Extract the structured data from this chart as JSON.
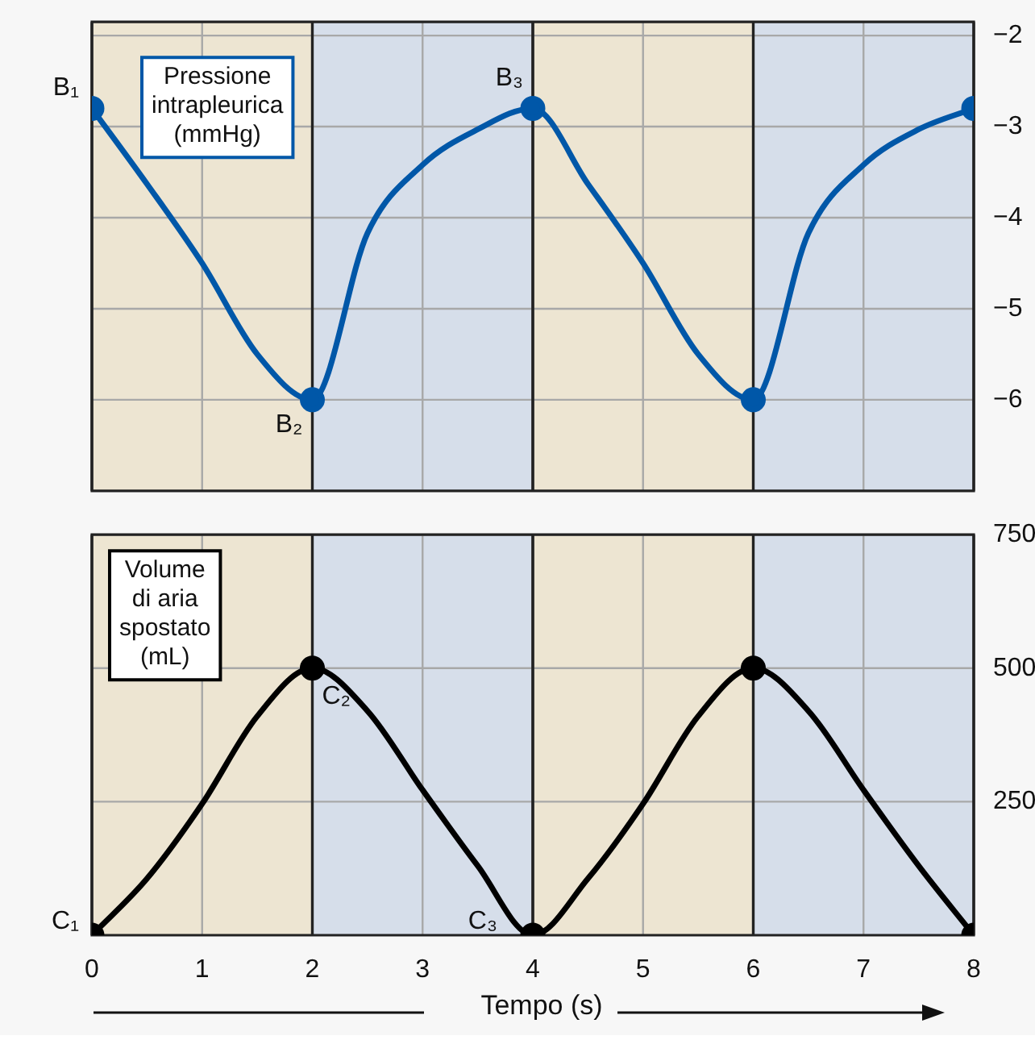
{
  "chart_data": [
    {
      "type": "line",
      "ylabel": "Pressione intrapleurica (mmHg)",
      "xlim": [
        0,
        8
      ],
      "xticks": [
        0,
        1,
        2,
        3,
        4,
        5,
        6,
        7,
        8
      ],
      "ylim": [
        -7,
        -1.85
      ],
      "yticks": [
        {
          "value": -2,
          "label": "−2"
        },
        {
          "value": -3,
          "label": "−3"
        },
        {
          "value": -4,
          "label": "−4"
        },
        {
          "value": -5,
          "label": "−5"
        },
        {
          "value": -6,
          "label": "−6"
        }
      ],
      "tick_labels": "y",
      "grid": true,
      "series": [
        {
          "color": "#0057a8",
          "marker": "none",
          "x": [
            0,
            0.5,
            1,
            1.5,
            2,
            2.5,
            3,
            3.5,
            4,
            4.5,
            5,
            5.5,
            6,
            6.5,
            7,
            7.5,
            8
          ],
          "values": [
            -2.8,
            -3.63,
            -4.5,
            -5.5,
            -6,
            -4.17,
            -3.42,
            -3.03,
            -2.8,
            -3.63,
            -4.5,
            -5.5,
            -6,
            -4.17,
            -3.42,
            -3.03,
            -2.8
          ]
        },
        {
          "type": "scatter",
          "color": "#0057a8",
          "marker": "circle",
          "x": [
            0,
            2,
            4,
            6,
            8
          ],
          "values": [
            -2.8,
            -6,
            -2.8,
            -6,
            -2.8
          ]
        }
      ],
      "bands": [
        {
          "axis": "x",
          "from": 0,
          "to": 2,
          "color": "#ede5d2"
        },
        {
          "axis": "x",
          "from": 2,
          "to": 4,
          "color": "#d6deea"
        },
        {
          "axis": "x",
          "from": 4,
          "to": 6,
          "color": "#ede5d2"
        },
        {
          "axis": "x",
          "from": 6,
          "to": 8,
          "color": "#d6deea"
        }
      ],
      "annotations": [
        {
          "text": "B₁",
          "x": 0,
          "y": -2.8
        },
        {
          "text": "B₂",
          "x": 2,
          "y": -6
        },
        {
          "text": "B₃",
          "x": 4,
          "y": -2.8
        }
      ]
    },
    {
      "type": "line",
      "ylabel": "Volume di aria spostato (mL)",
      "xlabel": "Tempo (s)",
      "xlim": [
        0,
        8
      ],
      "xticks": [
        0,
        1,
        2,
        3,
        4,
        5,
        6,
        7,
        8
      ],
      "ylim": [
        0,
        750
      ],
      "yticks": [
        250,
        500,
        750
      ],
      "grid": true,
      "series": [
        {
          "color": "#000000",
          "marker": "none",
          "x": [
            0,
            0.5,
            1,
            1.5,
            2,
            2.5,
            3,
            3.5,
            4,
            4.5,
            5,
            5.5,
            6,
            6.5,
            7,
            7.5,
            8
          ],
          "values": [
            0,
            106,
            246,
            410,
            500,
            420,
            272,
            130,
            0,
            106,
            246,
            410,
            500,
            420,
            272,
            130,
            0
          ]
        },
        {
          "type": "scatter",
          "color": "#000000",
          "marker": "circle",
          "x": [
            0,
            2,
            4,
            6,
            8
          ],
          "values": [
            0,
            500,
            0,
            500,
            0
          ]
        }
      ],
      "bands": [
        {
          "axis": "x",
          "from": 0,
          "to": 2,
          "color": "#ede5d2"
        },
        {
          "axis": "x",
          "from": 2,
          "to": 4,
          "color": "#d6deea"
        },
        {
          "axis": "x",
          "from": 4,
          "to": 6,
          "color": "#ede5d2"
        },
        {
          "axis": "x",
          "from": 6,
          "to": 8,
          "color": "#d6deea"
        }
      ],
      "annotations": [
        {
          "text": "C₁",
          "x": 0,
          "y": 0
        },
        {
          "text": "C₂",
          "x": 2,
          "y": 500
        },
        {
          "text": "C₃",
          "x": 4,
          "y": 0
        }
      ]
    }
  ]
}
